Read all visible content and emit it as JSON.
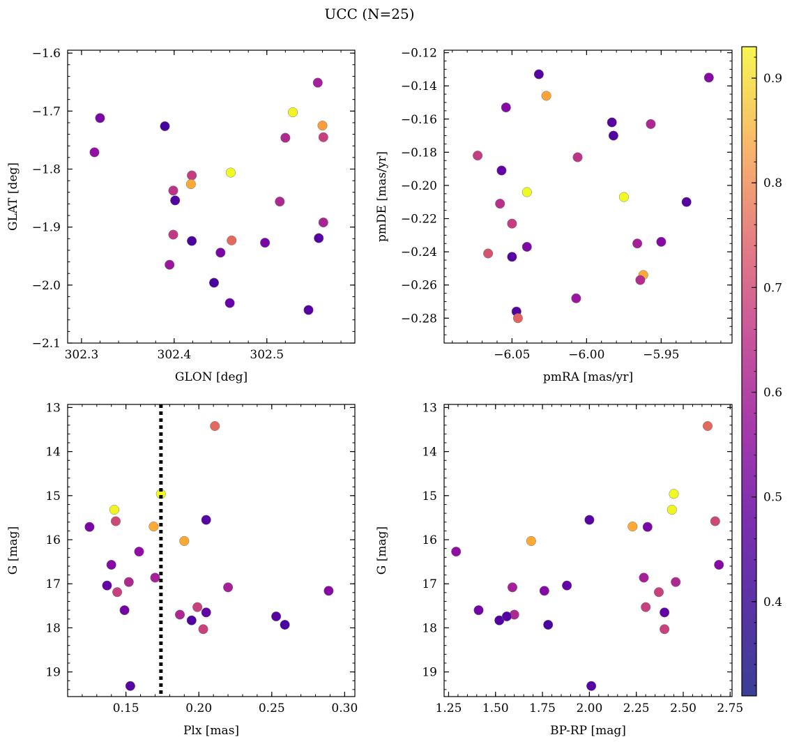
{
  "figure": {
    "title": "UCC (N=25)"
  },
  "colorbar": {
    "colormap": "plasma",
    "vmin": 0.31,
    "vmax": 0.93,
    "ticks": [
      0.4,
      0.5,
      0.6,
      0.7,
      0.8,
      0.9
    ],
    "tick_labels": [
      "0.4",
      "0.5",
      "0.6",
      "0.7",
      "0.8",
      "0.9"
    ]
  },
  "chart_data": [
    {
      "type": "scatter",
      "xlabel": "GLON [deg]",
      "ylabel": "GLAT [deg]",
      "xlim": [
        302.285,
        302.595
      ],
      "ylim": [
        -2.1,
        -1.595
      ],
      "y_inverted": false,
      "xticks": [
        302.3,
        302.4,
        302.5
      ],
      "xtick_labels": [
        "302.3",
        "302.4",
        "302.5"
      ],
      "yticks": [
        -2.1,
        -2.0,
        -1.9,
        -1.8,
        -1.7,
        -1.6
      ],
      "ytick_labels": [
        "−2.1",
        "−2.0",
        "−1.9",
        "−1.8",
        "−1.7",
        "−1.6"
      ],
      "points": [
        {
          "x": 302.32,
          "y": -1.712,
          "c": 0.42
        },
        {
          "x": 302.314,
          "y": -1.771,
          "c": 0.46
        },
        {
          "x": 302.39,
          "y": -1.726,
          "c": 0.33
        },
        {
          "x": 302.419,
          "y": -1.811,
          "c": 0.57
        },
        {
          "x": 302.399,
          "y": -1.837,
          "c": 0.55
        },
        {
          "x": 302.418,
          "y": -1.826,
          "c": 0.8
        },
        {
          "x": 302.401,
          "y": -1.854,
          "c": 0.35
        },
        {
          "x": 302.461,
          "y": -1.806,
          "c": 0.93
        },
        {
          "x": 302.399,
          "y": -1.913,
          "c": 0.56
        },
        {
          "x": 302.419,
          "y": -1.924,
          "c": 0.34
        },
        {
          "x": 302.395,
          "y": -1.965,
          "c": 0.48
        },
        {
          "x": 302.45,
          "y": -1.944,
          "c": 0.42
        },
        {
          "x": 302.462,
          "y": -1.923,
          "c": 0.67
        },
        {
          "x": 302.443,
          "y": -1.996,
          "c": 0.34
        },
        {
          "x": 302.46,
          "y": -2.031,
          "c": 0.39
        },
        {
          "x": 302.498,
          "y": -1.927,
          "c": 0.42
        },
        {
          "x": 302.514,
          "y": -1.856,
          "c": 0.52
        },
        {
          "x": 302.528,
          "y": -1.702,
          "c": 0.92
        },
        {
          "x": 302.52,
          "y": -1.746,
          "c": 0.52
        },
        {
          "x": 302.555,
          "y": -1.651,
          "c": 0.5
        },
        {
          "x": 302.56,
          "y": -1.725,
          "c": 0.78
        },
        {
          "x": 302.561,
          "y": -1.745,
          "c": 0.58
        },
        {
          "x": 302.561,
          "y": -1.892,
          "c": 0.51
        },
        {
          "x": 302.556,
          "y": -1.919,
          "c": 0.36
        },
        {
          "x": 302.545,
          "y": -2.043,
          "c": 0.36
        }
      ]
    },
    {
      "type": "scatter",
      "xlabel": "pmRA [mas/yr]",
      "ylabel": "pmDE [mas/yr]",
      "xlim": [
        -6.0955,
        -5.9025
      ],
      "ylim": [
        -0.295,
        -0.1185
      ],
      "y_inverted": false,
      "xticks": [
        -6.05,
        -6.0,
        -5.95
      ],
      "xtick_labels": [
        "−6.05",
        "−6.00",
        "−5.95"
      ],
      "yticks": [
        -0.28,
        -0.26,
        -0.24,
        -0.22,
        -0.2,
        -0.18,
        -0.16,
        -0.14,
        -0.12
      ],
      "ytick_labels": [
        "−0.28",
        "−0.26",
        "−0.24",
        "−0.22",
        "−0.20",
        "−0.18",
        "−0.16",
        "−0.14",
        "−0.12"
      ],
      "points": [
        {
          "x": -6.032,
          "y": -0.133,
          "c": 0.36
        },
        {
          "x": -6.027,
          "y": -0.146,
          "c": 0.79
        },
        {
          "x": -6.054,
          "y": -0.153,
          "c": 0.44
        },
        {
          "x": -6.073,
          "y": -0.182,
          "c": 0.57
        },
        {
          "x": -6.006,
          "y": -0.183,
          "c": 0.55
        },
        {
          "x": -5.983,
          "y": -0.162,
          "c": 0.36
        },
        {
          "x": -5.982,
          "y": -0.17,
          "c": 0.35
        },
        {
          "x": -5.957,
          "y": -0.163,
          "c": 0.52
        },
        {
          "x": -5.918,
          "y": -0.135,
          "c": 0.44
        },
        {
          "x": -6.057,
          "y": -0.191,
          "c": 0.38
        },
        {
          "x": -6.04,
          "y": -0.204,
          "c": 0.93
        },
        {
          "x": -5.975,
          "y": -0.207,
          "c": 0.93
        },
        {
          "x": -5.933,
          "y": -0.21,
          "c": 0.36
        },
        {
          "x": -6.058,
          "y": -0.211,
          "c": 0.54
        },
        {
          "x": -6.05,
          "y": -0.223,
          "c": 0.57
        },
        {
          "x": -5.966,
          "y": -0.235,
          "c": 0.5
        },
        {
          "x": -5.95,
          "y": -0.234,
          "c": 0.44
        },
        {
          "x": -6.066,
          "y": -0.241,
          "c": 0.62
        },
        {
          "x": -6.04,
          "y": -0.237,
          "c": 0.43
        },
        {
          "x": -6.05,
          "y": -0.243,
          "c": 0.36
        },
        {
          "x": -5.962,
          "y": -0.254,
          "c": 0.8
        },
        {
          "x": -5.964,
          "y": -0.257,
          "c": 0.53
        },
        {
          "x": -6.007,
          "y": -0.268,
          "c": 0.48
        },
        {
          "x": -6.047,
          "y": -0.276,
          "c": 0.35
        },
        {
          "x": -6.046,
          "y": -0.28,
          "c": 0.66
        }
      ]
    },
    {
      "type": "scatter",
      "xlabel": "Plx [mas]",
      "ylabel": "G [mag]",
      "xlim": [
        0.11,
        0.307
      ],
      "ylim": [
        19.56,
        12.93
      ],
      "y_inverted": true,
      "xticks": [
        0.15,
        0.2,
        0.25,
        0.3
      ],
      "xtick_labels": [
        "0.15",
        "0.20",
        "0.25",
        "0.30"
      ],
      "yticks": [
        13,
        14,
        15,
        16,
        17,
        18,
        19
      ],
      "ytick_labels": [
        "13",
        "14",
        "15",
        "16",
        "17",
        "18",
        "19"
      ],
      "vline": {
        "x": 0.174,
        "style": "dotted",
        "color": "#000000"
      },
      "points": [
        {
          "x": 0.211,
          "y": 13.42,
          "c": 0.67
        },
        {
          "x": 0.174,
          "y": 14.96,
          "c": 0.93
        },
        {
          "x": 0.142,
          "y": 15.32,
          "c": 0.92
        },
        {
          "x": 0.143,
          "y": 15.58,
          "c": 0.6
        },
        {
          "x": 0.125,
          "y": 15.71,
          "c": 0.42
        },
        {
          "x": 0.169,
          "y": 15.7,
          "c": 0.8
        },
        {
          "x": 0.205,
          "y": 15.55,
          "c": 0.36
        },
        {
          "x": 0.19,
          "y": 16.03,
          "c": 0.8
        },
        {
          "x": 0.159,
          "y": 16.27,
          "c": 0.46
        },
        {
          "x": 0.14,
          "y": 16.57,
          "c": 0.44
        },
        {
          "x": 0.137,
          "y": 17.04,
          "c": 0.38
        },
        {
          "x": 0.152,
          "y": 16.96,
          "c": 0.52
        },
        {
          "x": 0.17,
          "y": 16.86,
          "c": 0.5
        },
        {
          "x": 0.144,
          "y": 17.19,
          "c": 0.58
        },
        {
          "x": 0.22,
          "y": 17.08,
          "c": 0.5
        },
        {
          "x": 0.289,
          "y": 17.16,
          "c": 0.44
        },
        {
          "x": 0.149,
          "y": 17.6,
          "c": 0.41
        },
        {
          "x": 0.187,
          "y": 17.7,
          "c": 0.52
        },
        {
          "x": 0.199,
          "y": 17.53,
          "c": 0.58
        },
        {
          "x": 0.205,
          "y": 17.65,
          "c": 0.38
        },
        {
          "x": 0.195,
          "y": 17.83,
          "c": 0.35
        },
        {
          "x": 0.253,
          "y": 17.74,
          "c": 0.36
        },
        {
          "x": 0.259,
          "y": 17.93,
          "c": 0.34
        },
        {
          "x": 0.203,
          "y": 18.03,
          "c": 0.58
        },
        {
          "x": 0.153,
          "y": 19.32,
          "c": 0.36
        }
      ]
    },
    {
      "type": "scatter",
      "xlabel": "BP-RP [mag]",
      "ylabel": "G [mag]",
      "xlim": [
        1.226,
        2.76
      ],
      "ylim": [
        19.56,
        12.93
      ],
      "y_inverted": true,
      "xticks": [
        1.25,
        1.5,
        1.75,
        2.0,
        2.25,
        2.5,
        2.75
      ],
      "xtick_labels": [
        "1.25",
        "1.50",
        "1.75",
        "2.00",
        "2.25",
        "2.50",
        "2.75"
      ],
      "yticks": [
        13,
        14,
        15,
        16,
        17,
        18,
        19
      ],
      "ytick_labels": [
        "13",
        "14",
        "15",
        "16",
        "17",
        "18",
        "19"
      ],
      "points": [
        {
          "x": 2.63,
          "y": 13.42,
          "c": 0.67
        },
        {
          "x": 2.45,
          "y": 14.96,
          "c": 0.93
        },
        {
          "x": 2.44,
          "y": 15.32,
          "c": 0.92
        },
        {
          "x": 2.67,
          "y": 15.58,
          "c": 0.6
        },
        {
          "x": 2.31,
          "y": 15.71,
          "c": 0.42
        },
        {
          "x": 2.23,
          "y": 15.7,
          "c": 0.8
        },
        {
          "x": 2.0,
          "y": 15.55,
          "c": 0.36
        },
        {
          "x": 1.69,
          "y": 16.03,
          "c": 0.8
        },
        {
          "x": 1.29,
          "y": 16.27,
          "c": 0.46
        },
        {
          "x": 2.69,
          "y": 16.57,
          "c": 0.44
        },
        {
          "x": 1.88,
          "y": 17.04,
          "c": 0.38
        },
        {
          "x": 2.46,
          "y": 16.96,
          "c": 0.52
        },
        {
          "x": 2.29,
          "y": 16.86,
          "c": 0.5
        },
        {
          "x": 2.37,
          "y": 17.19,
          "c": 0.58
        },
        {
          "x": 1.59,
          "y": 17.08,
          "c": 0.5
        },
        {
          "x": 1.76,
          "y": 17.16,
          "c": 0.44
        },
        {
          "x": 1.41,
          "y": 17.6,
          "c": 0.41
        },
        {
          "x": 1.6,
          "y": 17.7,
          "c": 0.52
        },
        {
          "x": 2.3,
          "y": 17.53,
          "c": 0.58
        },
        {
          "x": 2.4,
          "y": 17.65,
          "c": 0.38
        },
        {
          "x": 1.52,
          "y": 17.83,
          "c": 0.35
        },
        {
          "x": 1.56,
          "y": 17.74,
          "c": 0.36
        },
        {
          "x": 1.78,
          "y": 17.93,
          "c": 0.34
        },
        {
          "x": 2.4,
          "y": 18.03,
          "c": 0.58
        },
        {
          "x": 2.01,
          "y": 19.32,
          "c": 0.36
        }
      ]
    }
  ]
}
